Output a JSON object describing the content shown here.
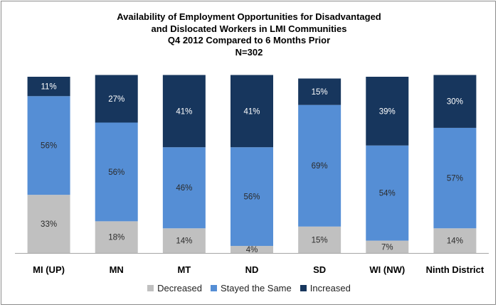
{
  "chart_data": {
    "type": "bar",
    "stacked": true,
    "title_lines": [
      "Availability of Employment Opportunities for Disadvantaged",
      "and Dislocated Workers in LMI Communities",
      "Q4 2012 Compared to 6 Months Prior",
      "N=302"
    ],
    "categories": [
      "MI (UP)",
      "MN",
      "MT",
      "ND",
      "SD",
      "WI (NW)",
      "Ninth District"
    ],
    "series": [
      {
        "name": "Decreased",
        "color": "#c0c0c0",
        "values": [
          33,
          18,
          14,
          4,
          15,
          7,
          14
        ],
        "labels": [
          "33%",
          "18%",
          "14%",
          "4%",
          "15%",
          "7%",
          "14%"
        ]
      },
      {
        "name": "Stayed the Same",
        "color": "#558ed5",
        "values": [
          56,
          56,
          46,
          56,
          69,
          54,
          57
        ],
        "labels": [
          "56%",
          "56%",
          "46%",
          "56%",
          "69%",
          "54%",
          "57%"
        ]
      },
      {
        "name": "Increased",
        "color": "#17365d",
        "values": [
          11,
          27,
          41,
          41,
          15,
          39,
          30
        ],
        "labels": [
          "11%",
          "27%",
          "41%",
          "41%",
          "15%",
          "39%",
          "30%"
        ]
      }
    ],
    "ylim": [
      0,
      100
    ],
    "grid": false,
    "legend_position": "bottom"
  }
}
